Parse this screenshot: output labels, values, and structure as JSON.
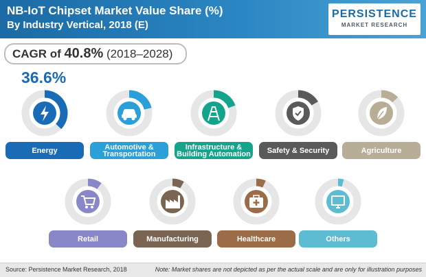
{
  "header": {
    "title_line1": "NB-IoT Chipset Market Value Share (%)",
    "title_line2": "By Industry Vertical, 2018 (E)",
    "logo_main": "PERSISTENCE",
    "logo_sub": "MARKET RESEARCH"
  },
  "cagr": {
    "prefix": "CAGR of ",
    "value": "40.8%",
    "range": " (2018–2028)"
  },
  "highlight_value": "36.6%",
  "colors": {
    "track": "#e6e6e6",
    "energy": "#1a6bb5",
    "automotive": "#2a9fd8",
    "infrastructure": "#14a38b",
    "safety": "#5a5a5a",
    "agriculture": "#b8ad97",
    "retail": "#8a87c8",
    "manufacturing": "#7a6553",
    "healthcare": "#9c6b47",
    "others": "#5dbcd2"
  },
  "icons": [
    "lightning-icon",
    "car-icon",
    "tower-icon",
    "shield-check-icon",
    "leaf-icon",
    "cart-icon",
    "factory-icon",
    "medical-kit-icon",
    "monitor-icon"
  ],
  "chart_data": {
    "type": "pie",
    "title": "NB-IoT Chipset Market Value Share (%) By Industry Vertical, 2018 (E)",
    "categories": [
      "Energy",
      "Automotive & Transportation",
      "Infrastructure & Building Automation",
      "Safety & Security",
      "Agriculture",
      "Retail",
      "Manufacturing",
      "Healthcare",
      "Others"
    ],
    "values": [
      36.6,
      null,
      null,
      null,
      null,
      null,
      null,
      null,
      null
    ],
    "labeled_value": {
      "category": "Energy",
      "value": 36.6,
      "unit": "%"
    },
    "note": "Note: Market shares are not depicted as per the actual scale and are only for illustration purposes"
  },
  "items": [
    {
      "key": "energy",
      "label": "Energy",
      "icon": "lightning-icon",
      "color": "#1a6bb5"
    },
    {
      "key": "automotive",
      "label": "Automotive & Transportation",
      "icon": "car-icon",
      "color": "#2a9fd8"
    },
    {
      "key": "infrastructure",
      "label": "Infrastructure & Building Automation",
      "icon": "tower-icon",
      "color": "#14a38b"
    },
    {
      "key": "safety",
      "label": "Safety & Security",
      "icon": "shield-check-icon",
      "color": "#5a5a5a"
    },
    {
      "key": "agriculture",
      "label": "Agriculture",
      "icon": "leaf-icon",
      "color": "#b8ad97"
    },
    {
      "key": "retail",
      "label": "Retail",
      "icon": "cart-icon",
      "color": "#8a87c8"
    },
    {
      "key": "manufacturing",
      "label": "Manufacturing",
      "icon": "factory-icon",
      "color": "#7a6553"
    },
    {
      "key": "healthcare",
      "label": "Healthcare",
      "icon": "medical-kit-icon",
      "color": "#9c6b47"
    },
    {
      "key": "others",
      "label": "Others",
      "icon": "monitor-icon",
      "color": "#5dbcd2"
    }
  ],
  "footer": {
    "source": "Source: Persistence Market Research, 2018",
    "note": "Note: Market shares are not depicted as per the actual scale and are only for illustration purposes"
  }
}
